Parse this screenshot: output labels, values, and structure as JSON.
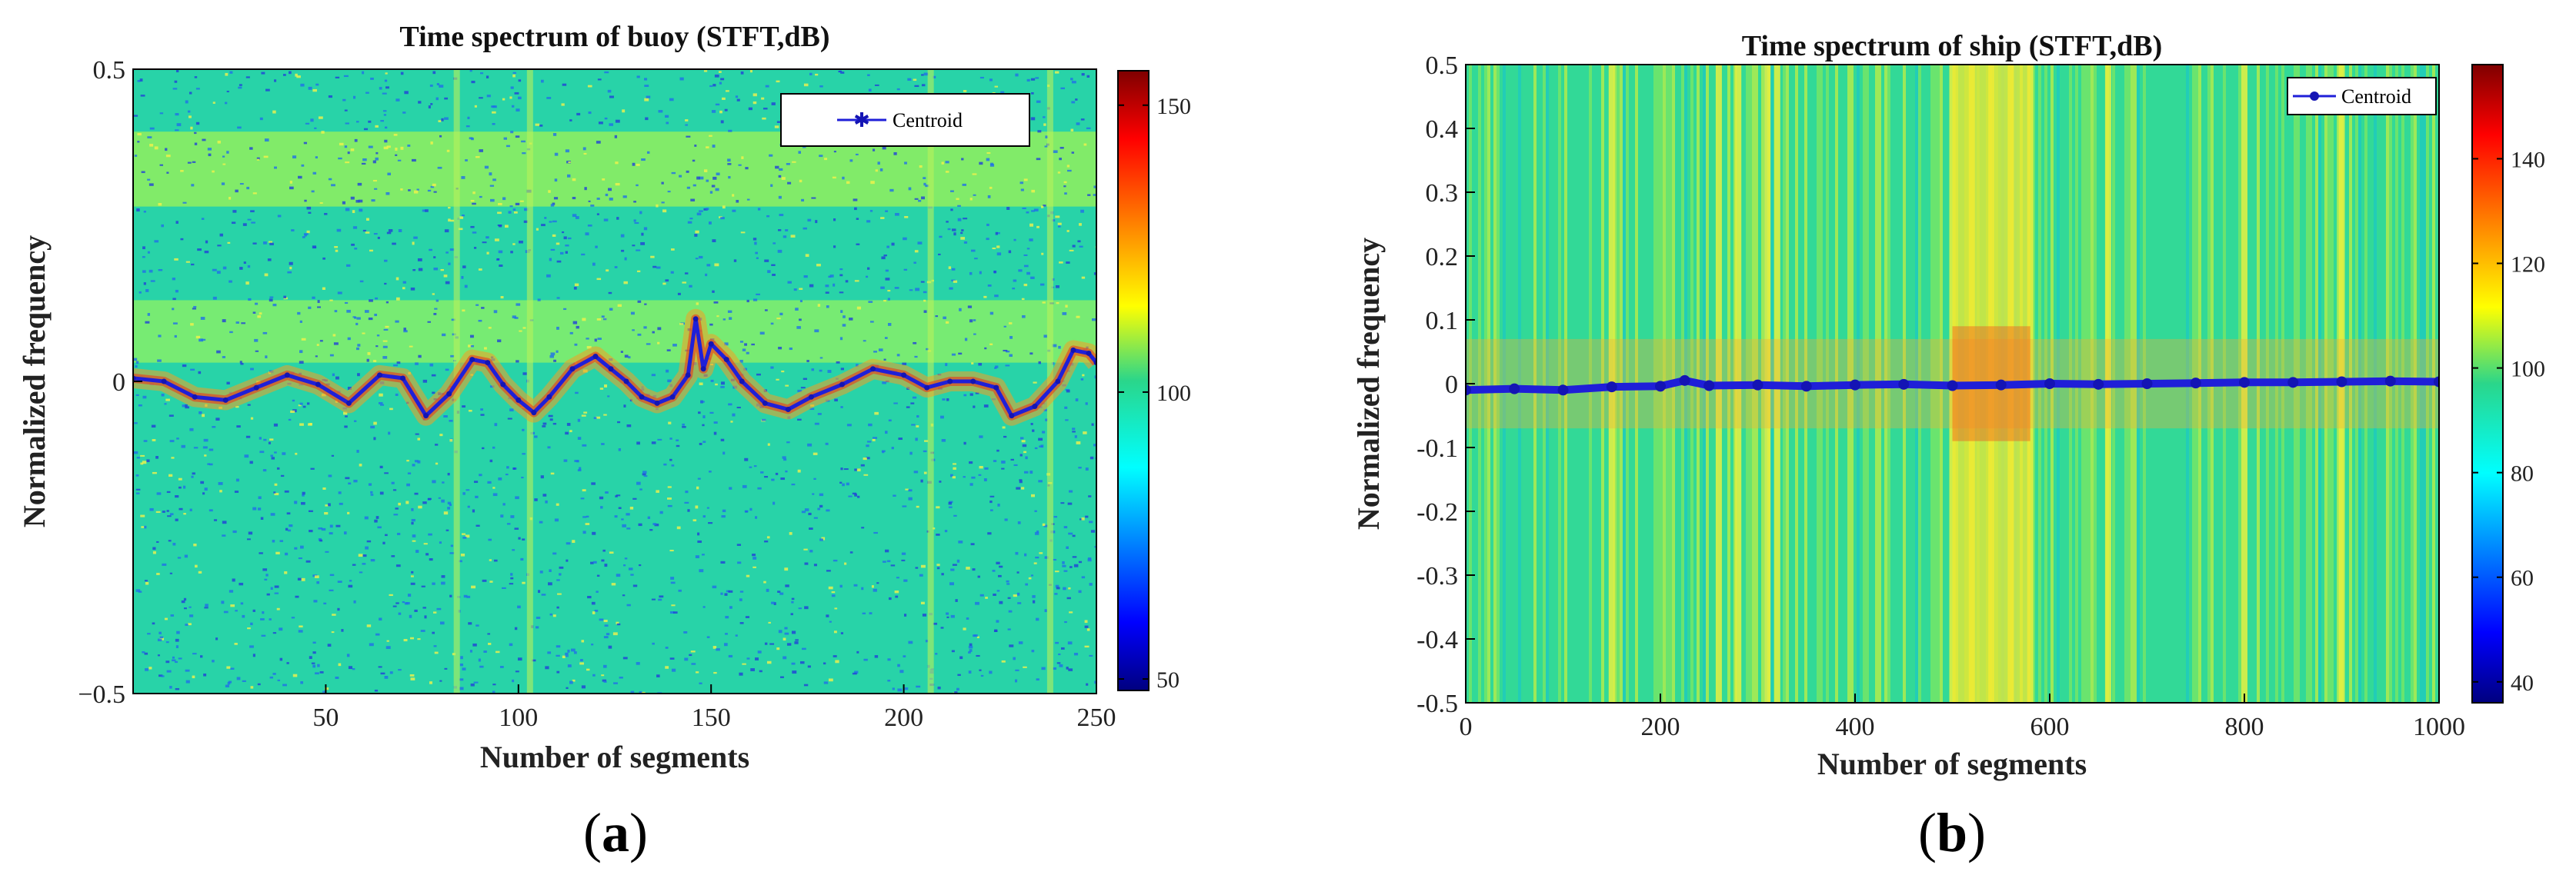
{
  "figure": {
    "panel_labels": [
      {
        "open": "(",
        "letter": "a",
        "close": ")"
      },
      {
        "open": "(",
        "letter": "b",
        "close": ")"
      }
    ]
  },
  "colors": {
    "centroid_line": "#1f1fd8",
    "centroid_marker": "#1414b4",
    "background": "#ffffff",
    "colormap": "jet"
  },
  "chart_data": [
    {
      "type": "heatmap",
      "title": "Time spectrum of buoy (STFT,dB)",
      "xlabel": "Number of segments",
      "ylabel": "Normalized frequency",
      "xlim": [
        0,
        250
      ],
      "ylim": [
        -0.5,
        0.5
      ],
      "xticks": [
        50,
        100,
        150,
        200,
        250
      ],
      "yticks": [
        -0.5,
        0,
        0.5
      ],
      "ytick_labels": [
        "−0.5",
        "0",
        "0.5"
      ],
      "colorbar": {
        "range": [
          48,
          156
        ],
        "ticks": [
          50,
          100,
          150
        ],
        "label": ""
      },
      "legend": {
        "entries": [
          "Centroid"
        ],
        "position": "top-right"
      },
      "bands": [
        {
          "y_center": 0.34,
          "y_halfwidth": 0.06,
          "level_db": 110
        },
        {
          "y_center": 0.08,
          "y_halfwidth": 0.05,
          "level_db": 108
        }
      ],
      "vertical_streaks_x": [
        84,
        103,
        207,
        238
      ],
      "series": [
        {
          "name": "Centroid",
          "x": [
            0,
            8,
            16,
            24,
            32,
            40,
            48,
            56,
            64,
            70,
            76,
            82,
            88,
            92,
            96,
            100,
            104,
            108,
            114,
            120,
            124,
            128,
            132,
            136,
            140,
            144,
            146,
            148,
            150,
            154,
            158,
            164,
            170,
            176,
            184,
            192,
            200,
            206,
            212,
            218,
            224,
            228,
            234,
            240,
            244,
            248,
            250
          ],
          "y": [
            0.005,
            0.0,
            -0.025,
            -0.03,
            -0.01,
            0.01,
            -0.005,
            -0.035,
            0.01,
            0.005,
            -0.055,
            -0.02,
            0.035,
            0.03,
            -0.005,
            -0.03,
            -0.05,
            -0.025,
            0.02,
            0.04,
            0.02,
            0.0,
            -0.025,
            -0.035,
            -0.025,
            0.01,
            0.1,
            0.02,
            0.06,
            0.035,
            0.0,
            -0.035,
            -0.045,
            -0.025,
            -0.005,
            0.02,
            0.01,
            -0.01,
            0.0,
            0.0,
            -0.01,
            -0.055,
            -0.04,
            0.0,
            0.05,
            0.045,
            0.03
          ]
        }
      ]
    },
    {
      "type": "heatmap",
      "title": "Time spectrum of ship (STFT,dB)",
      "xlabel": "Number of segments",
      "ylabel": "Normalized frequency",
      "xlim": [
        0,
        1000
      ],
      "ylim": [
        -0.5,
        0.5
      ],
      "xticks": [
        0,
        200,
        400,
        600,
        800,
        1000
      ],
      "yticks": [
        -0.5,
        -0.4,
        -0.3,
        -0.2,
        -0.1,
        0,
        0.1,
        0.2,
        0.3,
        0.4,
        0.5
      ],
      "ytick_labels": [
        "-0.5",
        "-0.4",
        "-0.3",
        "-0.2",
        "-0.1",
        "0",
        "0.1",
        "0.2",
        "0.3",
        "0.4",
        "0.5"
      ],
      "colorbar": {
        "range": [
          36,
          158
        ],
        "ticks": [
          40,
          60,
          80,
          100,
          120,
          140
        ],
        "label": ""
      },
      "legend": {
        "entries": [
          "Centroid"
        ],
        "position": "top-right"
      },
      "hot_region_x": [
        500,
        580
      ],
      "vertical_streaks_x": [
        150,
        260,
        280,
        310,
        320,
        500,
        520,
        540,
        560,
        580,
        660,
        800,
        900
      ],
      "series": [
        {
          "name": "Centroid",
          "x": [
            0,
            50,
            100,
            150,
            200,
            225,
            250,
            300,
            350,
            400,
            450,
            500,
            550,
            600,
            650,
            700,
            750,
            800,
            850,
            900,
            950,
            1000
          ],
          "y": [
            -0.01,
            -0.008,
            -0.01,
            -0.005,
            -0.004,
            0.005,
            -0.003,
            -0.002,
            -0.004,
            -0.002,
            -0.001,
            -0.003,
            -0.002,
            0.0,
            -0.001,
            0.0,
            0.001,
            0.002,
            0.002,
            0.003,
            0.004,
            0.003
          ]
        }
      ]
    }
  ]
}
